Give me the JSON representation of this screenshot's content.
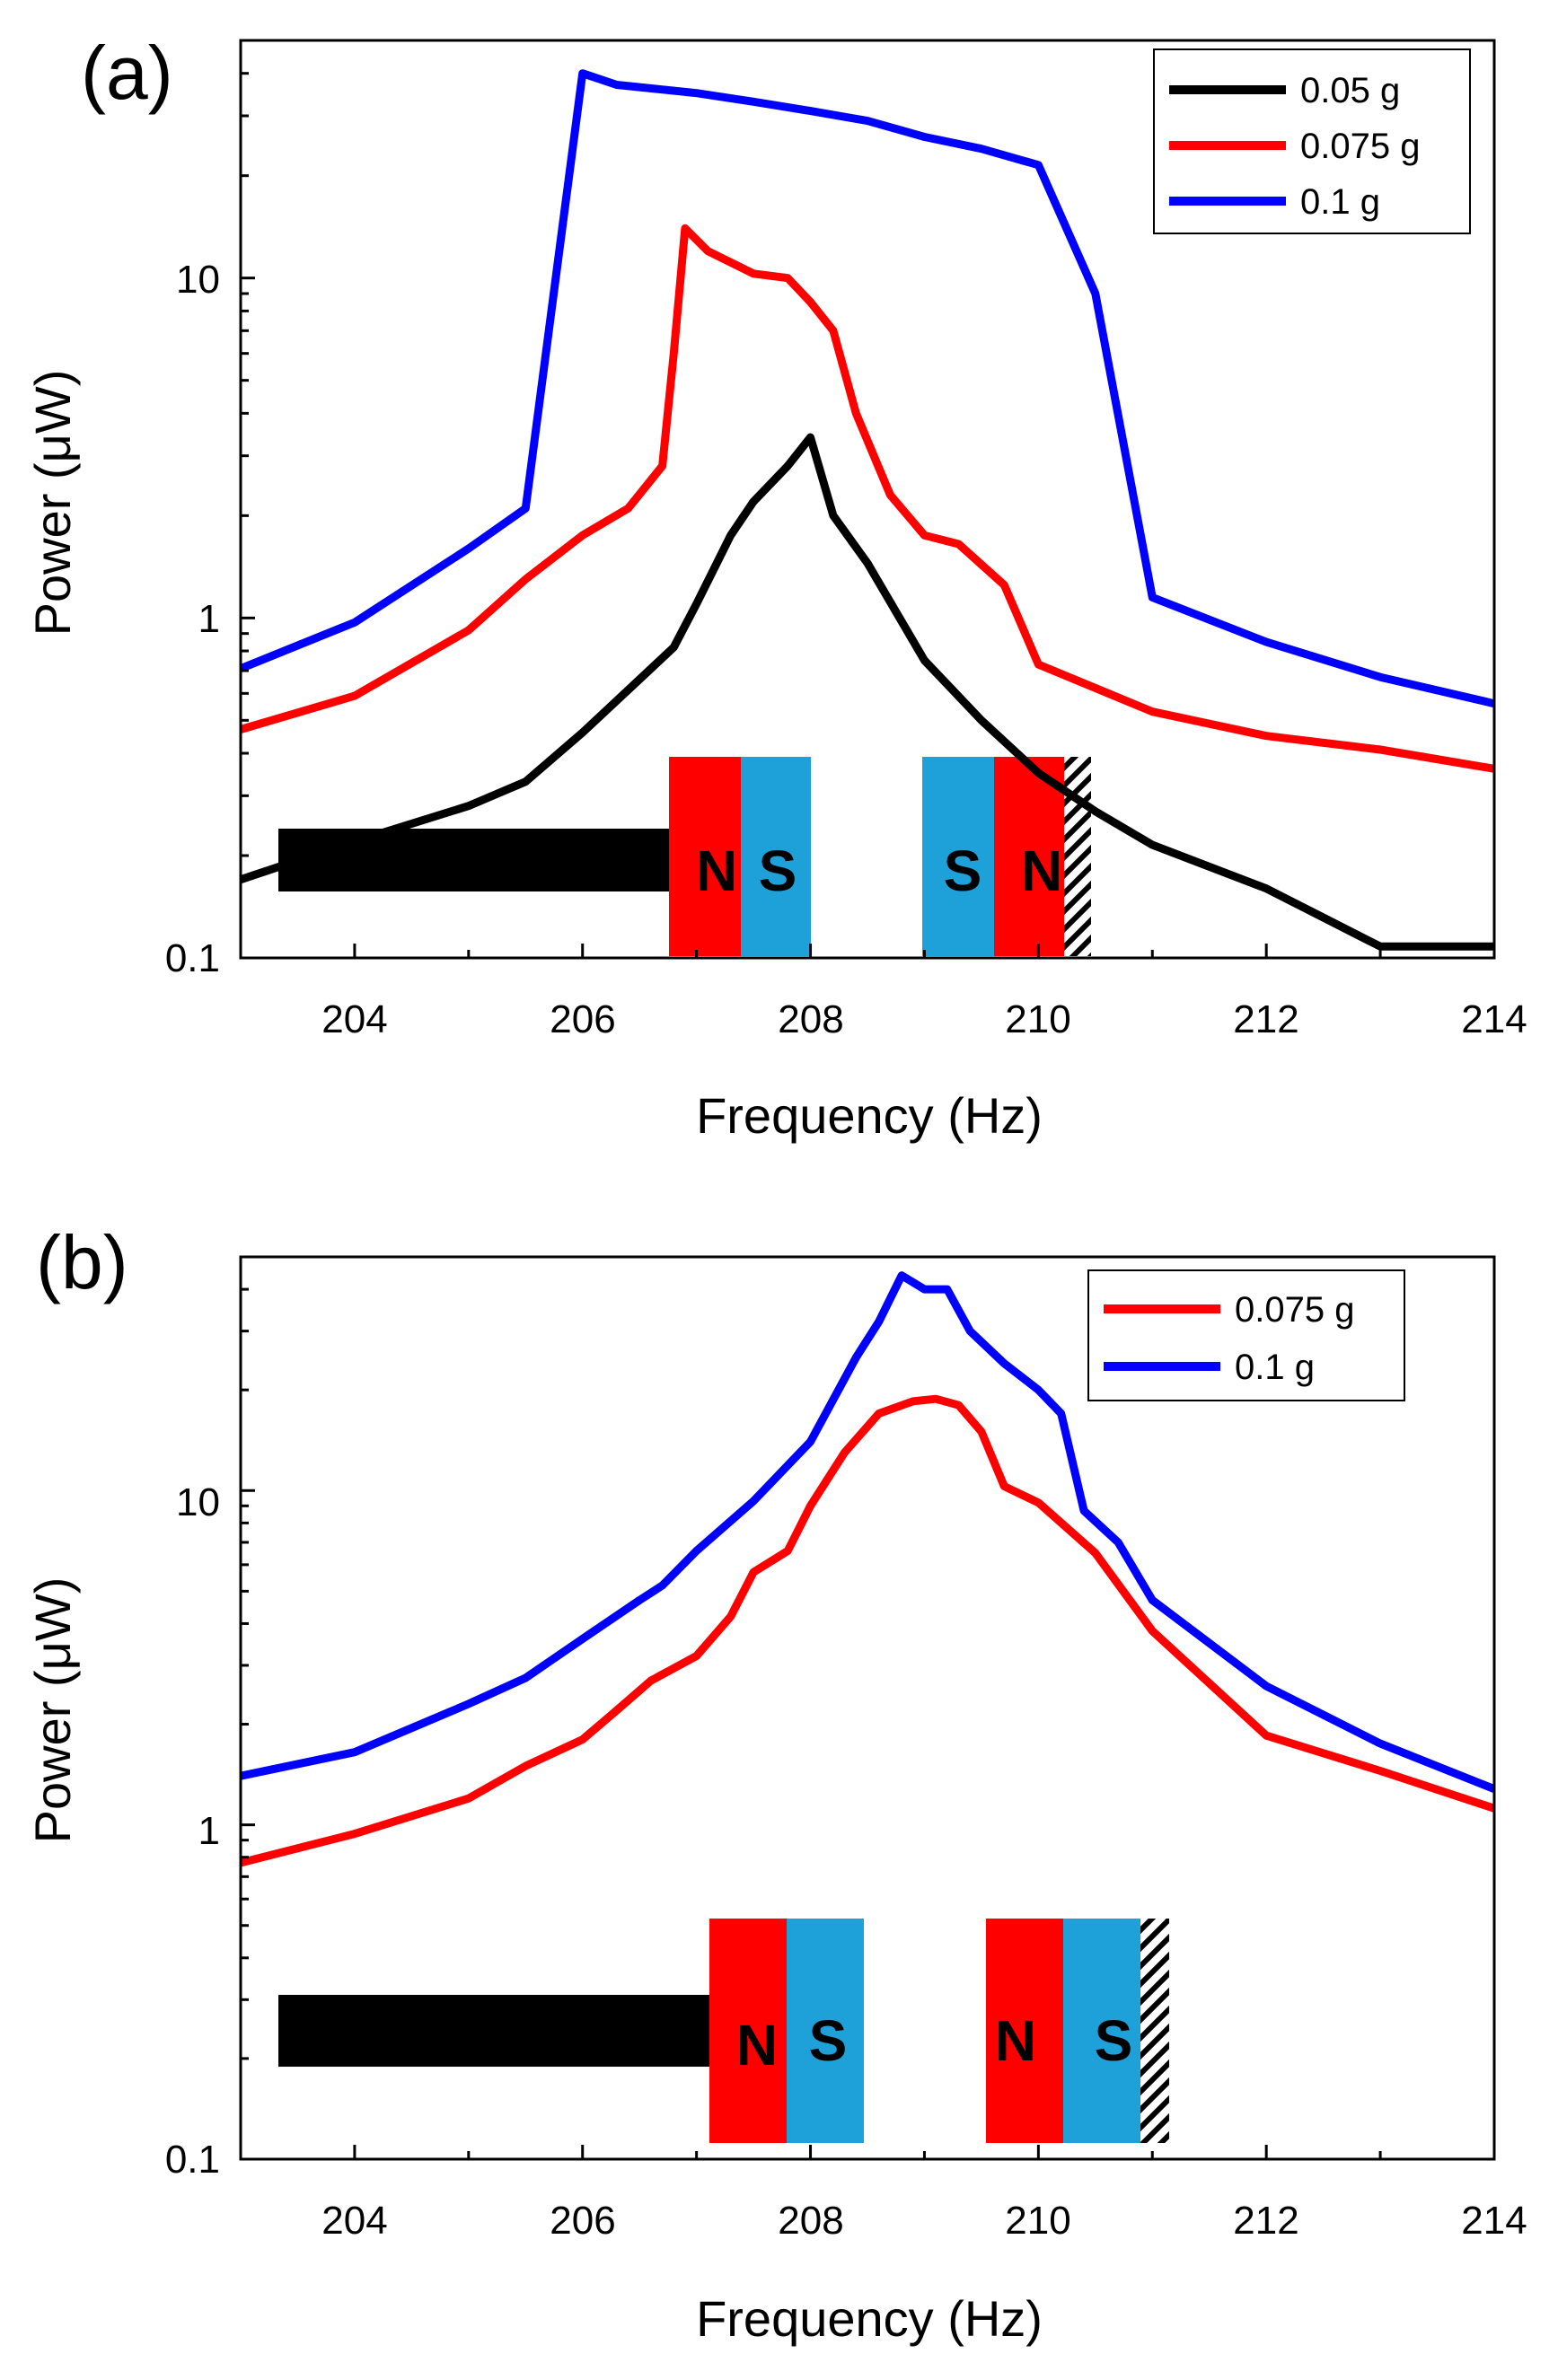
{
  "chart_data": [
    {
      "type": "line",
      "panel_label": "(a)",
      "xlabel": "Frequency (Hz)",
      "ylabel": "Power (μW)",
      "xlim": [
        203,
        214
      ],
      "ylim": [
        0.1,
        50
      ],
      "yscale": "log",
      "xticks": [
        204,
        206,
        208,
        210,
        212,
        214
      ],
      "xtick_labels": [
        "204",
        "206",
        "208",
        "210",
        "212",
        "214"
      ],
      "yticks": [
        0.1,
        1,
        10
      ],
      "ytick_labels": [
        "0.1",
        "1",
        "10"
      ],
      "grid": false,
      "legend_position": "top-right",
      "legend": [
        "0.05 g",
        "0.075 g",
        "0.1 g"
      ],
      "series": [
        {
          "name": "0.05 g",
          "color": "#000000",
          "points": [
            [
              203,
              0.17
            ],
            [
              204,
              0.22
            ],
            [
              205,
              0.28
            ],
            [
              205.5,
              0.33
            ],
            [
              206,
              0.46
            ],
            [
              206.5,
              0.66
            ],
            [
              206.8,
              0.82
            ],
            [
              207,
              1.1
            ],
            [
              207.3,
              1.75
            ],
            [
              207.5,
              2.2
            ],
            [
              207.8,
              2.8
            ],
            [
              208,
              3.4
            ],
            [
              208.2,
              2.0
            ],
            [
              208.5,
              1.45
            ],
            [
              209,
              0.75
            ],
            [
              209.5,
              0.5
            ],
            [
              210,
              0.35
            ],
            [
              210.5,
              0.27
            ],
            [
              211,
              0.215
            ],
            [
              212,
              0.16
            ],
            [
              213,
              0.108
            ],
            [
              214,
              0.108
            ]
          ]
        },
        {
          "name": "0.075 g",
          "color": "#ff0000",
          "points": [
            [
              203,
              0.47
            ],
            [
              204,
              0.59
            ],
            [
              205,
              0.92
            ],
            [
              205.5,
              1.3
            ],
            [
              206,
              1.75
            ],
            [
              206.4,
              2.1
            ],
            [
              206.7,
              2.8
            ],
            [
              206.8,
              6.0
            ],
            [
              206.9,
              14.0
            ],
            [
              207.1,
              12.0
            ],
            [
              207.5,
              10.3
            ],
            [
              207.8,
              10.0
            ],
            [
              208,
              8.5
            ],
            [
              208.2,
              7.0
            ],
            [
              208.4,
              4.0
            ],
            [
              208.7,
              2.3
            ],
            [
              209,
              1.75
            ],
            [
              209.3,
              1.65
            ],
            [
              209.7,
              1.25
            ],
            [
              210,
              0.73
            ],
            [
              211,
              0.53
            ],
            [
              212,
              0.45
            ],
            [
              213,
              0.41
            ],
            [
              214,
              0.36
            ]
          ]
        },
        {
          "name": "0.1 g",
          "color": "#0000ff",
          "points": [
            [
              203,
              0.71
            ],
            [
              204,
              0.97
            ],
            [
              205,
              1.6
            ],
            [
              205.5,
              2.1
            ],
            [
              206,
              40.0
            ],
            [
              206.3,
              37.0
            ],
            [
              207,
              35.0
            ],
            [
              207.5,
              33.0
            ],
            [
              208,
              31.0
            ],
            [
              208.5,
              29.0
            ],
            [
              209,
              26.0
            ],
            [
              209.5,
              24.0
            ],
            [
              210,
              21.5
            ],
            [
              210.5,
              9.0
            ],
            [
              211,
              1.15
            ],
            [
              212,
              0.85
            ],
            [
              213,
              0.67
            ],
            [
              214,
              0.56
            ]
          ]
        }
      ],
      "inset": {
        "left_magnet": [
          "N",
          "S"
        ],
        "right_magnet": [
          "S",
          "N"
        ]
      }
    },
    {
      "type": "line",
      "panel_label": "(b)",
      "xlabel": "Frequency (Hz)",
      "ylabel": "Power (μW)",
      "xlim": [
        203,
        214
      ],
      "ylim": [
        0.1,
        50
      ],
      "yscale": "log",
      "xticks": [
        204,
        206,
        208,
        210,
        212,
        214
      ],
      "xtick_labels": [
        "204",
        "206",
        "208",
        "210",
        "212",
        "214"
      ],
      "yticks": [
        0.1,
        1,
        10
      ],
      "ytick_labels": [
        "0.1",
        "1",
        "10"
      ],
      "grid": false,
      "legend_position": "top-right",
      "legend": [
        "0.075 g",
        "0.1 g"
      ],
      "series": [
        {
          "name": "0.075 g",
          "color": "#ff0000",
          "points": [
            [
              203,
              0.77
            ],
            [
              204,
              0.94
            ],
            [
              205,
              1.2
            ],
            [
              205.5,
              1.5
            ],
            [
              206,
              1.8
            ],
            [
              206.3,
              2.2
            ],
            [
              206.6,
              2.7
            ],
            [
              207,
              3.2
            ],
            [
              207.3,
              4.2
            ],
            [
              207.5,
              5.7
            ],
            [
              207.8,
              6.6
            ],
            [
              208,
              9.0
            ],
            [
              208.3,
              13.0
            ],
            [
              208.6,
              17.0
            ],
            [
              208.9,
              18.5
            ],
            [
              209.1,
              18.8
            ],
            [
              209.3,
              18.0
            ],
            [
              209.5,
              15.0
            ],
            [
              209.7,
              10.3
            ],
            [
              210,
              9.2
            ],
            [
              210.5,
              6.5
            ],
            [
              211,
              3.8
            ],
            [
              212,
              1.85
            ],
            [
              213,
              1.45
            ],
            [
              214,
              1.12
            ]
          ]
        },
        {
          "name": "0.1 g",
          "color": "#0000ff",
          "points": [
            [
              203,
              1.4
            ],
            [
              204,
              1.65
            ],
            [
              205,
              2.3
            ],
            [
              205.5,
              2.75
            ],
            [
              206,
              3.6
            ],
            [
              206.5,
              4.7
            ],
            [
              206.7,
              5.2
            ],
            [
              207,
              6.6
            ],
            [
              207.5,
              9.3
            ],
            [
              208,
              14.0
            ],
            [
              208.4,
              25.0
            ],
            [
              208.6,
              32.0
            ],
            [
              208.8,
              44.0
            ],
            [
              209,
              40.0
            ],
            [
              209.2,
              40.0
            ],
            [
              209.4,
              30.0
            ],
            [
              209.7,
              24.0
            ],
            [
              210,
              20.0
            ],
            [
              210.2,
              17.0
            ],
            [
              210.4,
              8.7
            ],
            [
              210.7,
              7.0
            ],
            [
              211,
              4.7
            ],
            [
              212,
              2.6
            ],
            [
              213,
              1.75
            ],
            [
              214,
              1.28
            ]
          ]
        }
      ],
      "inset": {
        "left_magnet": [
          "N",
          "S"
        ],
        "right_magnet": [
          "N",
          "S"
        ]
      }
    }
  ]
}
